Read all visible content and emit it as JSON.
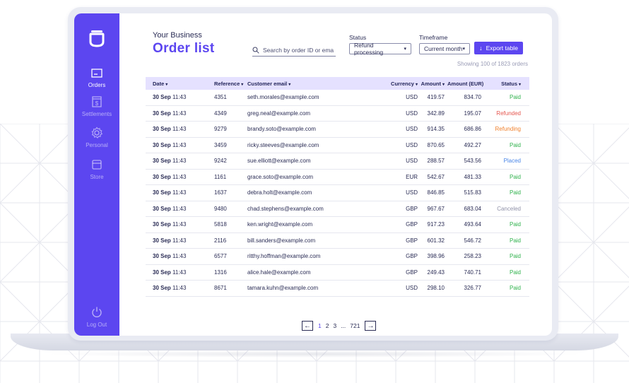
{
  "header": {
    "business_name": "Your Business",
    "page_title": "Order list"
  },
  "sidebar": {
    "items": [
      {
        "label": "Orders",
        "icon": "orders-icon"
      },
      {
        "label": "Settlements",
        "icon": "settlements-icon"
      },
      {
        "label": "Personal",
        "icon": "gear-icon"
      },
      {
        "label": "Store",
        "icon": "store-icon"
      }
    ],
    "logout_label": "Log Out"
  },
  "search": {
    "placeholder": "Search by order ID or email"
  },
  "filters": {
    "status_label": "Status",
    "status_value": "Refund processing",
    "timeframe_label": "Timeframe",
    "timeframe_value": "Current month"
  },
  "export_label": "Export table",
  "showing_text": "Showing 100 of 1823 orders",
  "table": {
    "headers": {
      "date": "Date",
      "reference": "Reference",
      "email": "Customer email",
      "currency": "Currency",
      "amount": "Amount",
      "amount_eur": "Amount (EUR)",
      "status": "Status"
    },
    "rows": [
      {
        "date": "30 Sep",
        "time": "11:43",
        "reference": "4351",
        "email": "seth.morales@example.com",
        "currency": "USD",
        "amount": "419.57",
        "amount_eur": "834.70",
        "status": "Paid",
        "status_color": "#2fb24c"
      },
      {
        "date": "30 Sep",
        "time": "11:43",
        "reference": "4349",
        "email": "greg.neal@example.com",
        "currency": "USD",
        "amount": "342.89",
        "amount_eur": "195.07",
        "status": "Refunded",
        "status_color": "#e5574f"
      },
      {
        "date": "30 Sep",
        "time": "11:43",
        "reference": "9279",
        "email": "brandy.soto@example.com",
        "currency": "USD",
        "amount": "914.35",
        "amount_eur": "686.86",
        "status": "Refunding",
        "status_color": "#f0812e"
      },
      {
        "date": "30 Sep",
        "time": "11:43",
        "reference": "3459",
        "email": "ricky.steeves@example.com",
        "currency": "USD",
        "amount": "870.65",
        "amount_eur": "492.27",
        "status": "Paid",
        "status_color": "#2fb24c"
      },
      {
        "date": "30 Sep",
        "time": "11:43",
        "reference": "9242",
        "email": "sue.elliott@example.com",
        "currency": "USD",
        "amount": "288.57",
        "amount_eur": "543.56",
        "status": "Placed",
        "status_color": "#4a86e8"
      },
      {
        "date": "30 Sep",
        "time": "11:43",
        "reference": "1161",
        "email": "grace.soto@example.com",
        "currency": "EUR",
        "amount": "542.67",
        "amount_eur": "481.33",
        "status": "Paid",
        "status_color": "#2fb24c"
      },
      {
        "date": "30 Sep",
        "time": "11:43",
        "reference": "1637",
        "email": "debra.holt@example.com",
        "currency": "USD",
        "amount": "846.85",
        "amount_eur": "515.83",
        "status": "Paid",
        "status_color": "#2fb24c"
      },
      {
        "date": "30 Sep",
        "time": "11:43",
        "reference": "9480",
        "email": "chad.stephens@example.com",
        "currency": "GBP",
        "amount": "967.67",
        "amount_eur": "683.04",
        "status": "Canceled",
        "status_color": "#8f91a8"
      },
      {
        "date": "30 Sep",
        "time": "11:43",
        "reference": "5818",
        "email": "ken.wright@example.com",
        "currency": "GBP",
        "amount": "917.23",
        "amount_eur": "493.64",
        "status": "Paid",
        "status_color": "#2fb24c"
      },
      {
        "date": "30 Sep",
        "time": "11:43",
        "reference": "2116",
        "email": "bill.sanders@example.com",
        "currency": "GBP",
        "amount": "601.32",
        "amount_eur": "546.72",
        "status": "Paid",
        "status_color": "#2fb24c"
      },
      {
        "date": "30 Sep",
        "time": "11:43",
        "reference": "6577",
        "email": "ritthy.hoffman@example.com",
        "currency": "GBP",
        "amount": "398.96",
        "amount_eur": "258.23",
        "status": "Paid",
        "status_color": "#2fb24c"
      },
      {
        "date": "30 Sep",
        "time": "11:43",
        "reference": "1316",
        "email": "alice.hale@example.com",
        "currency": "GBP",
        "amount": "249.43",
        "amount_eur": "740.71",
        "status": "Paid",
        "status_color": "#2fb24c"
      },
      {
        "date": "30 Sep",
        "time": "11:43",
        "reference": "8671",
        "email": "tamara.kuhn@example.com",
        "currency": "USD",
        "amount": "298.10",
        "amount_eur": "326.77",
        "status": "Paid",
        "status_color": "#2fb24c"
      }
    ]
  },
  "pagination": {
    "pages": [
      "1",
      "2",
      "3",
      "...",
      "721"
    ],
    "current": "1"
  },
  "colors": {
    "accent": "#5c46f0",
    "header_row": "#e5e1ff"
  }
}
